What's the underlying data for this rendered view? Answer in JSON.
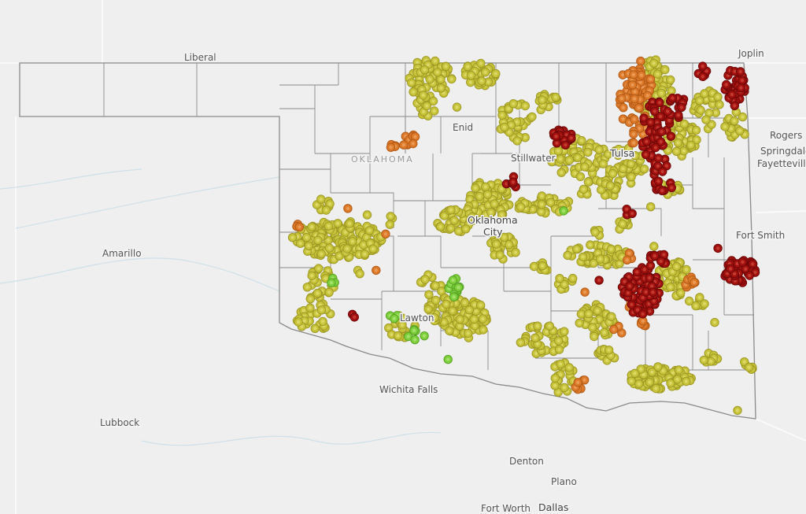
{
  "map": {
    "state_label": "OKLAHOMA",
    "cities": {
      "liberal": "Liberal",
      "joplin": "Joplin",
      "enid": "Enid",
      "stillwater": "Stillwater",
      "tulsa": "Tulsa",
      "rogers": "Rogers",
      "springdale": "Springdale",
      "fayetteville": "Fayetteville",
      "okc_1": "Oklahoma",
      "okc_2": "City",
      "fort_smith": "Fort Smith",
      "amarillo": "Amarillo",
      "lawton": "Lawton",
      "wichita_falls": "Wichita Falls",
      "lubbock": "Lubbock",
      "denton": "Denton",
      "plano": "Plano",
      "fort_worth": "Fort Worth",
      "dallas": "Dallas"
    },
    "marker_colors": {
      "yellow": "#c6c23a",
      "orange": "#dd7a2a",
      "red": "#a3110f",
      "green": "#7dd03c"
    },
    "background_color": "#efefef",
    "boundary_color": "#8a8a8a"
  }
}
